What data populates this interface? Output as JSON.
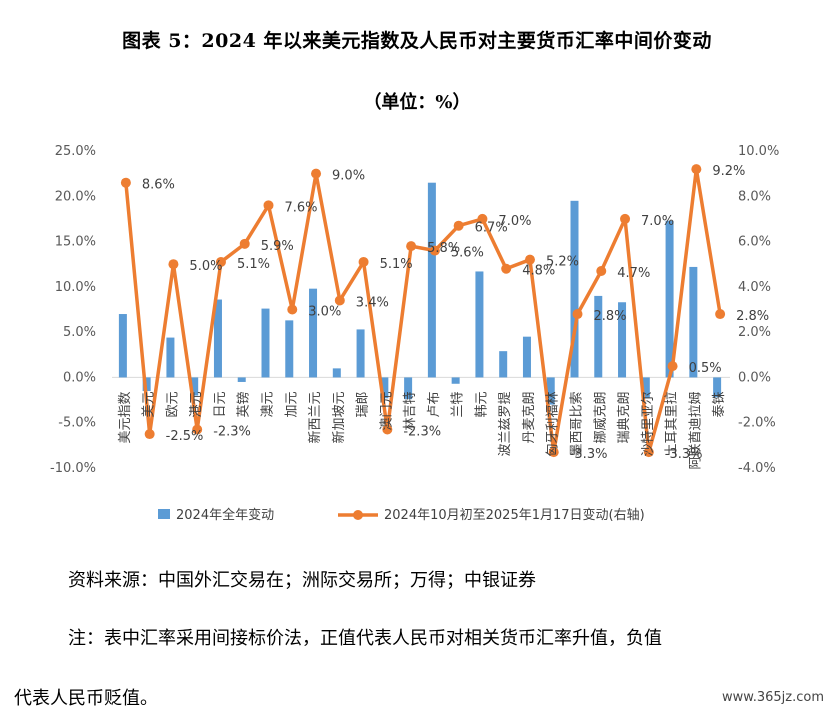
{
  "chart_data": {
    "type": "bar+line",
    "title": "图表 5：2024 年以来美元指数及人民币对主要货币汇率中间价变动",
    "subtitle": "（单位：%）",
    "categories": [
      "美元指数",
      "美元",
      "欧元",
      "港元",
      "日元",
      "英镑",
      "澳元",
      "加元",
      "新西兰元",
      "新加坡元",
      "瑞郎",
      "澳门元",
      "林吉特",
      "卢布",
      "兰特",
      "韩元",
      "波兰兹罗提",
      "丹麦克朗",
      "匈牙利福林",
      "墨西哥比索",
      "挪威克朗",
      "瑞典克朗",
      "沙特里亚尔",
      "土耳其里拉",
      "阿联酋迪拉姆",
      "泰铢"
    ],
    "series": [
      {
        "name": "2024年全年变动",
        "type": "bar",
        "axis": "left",
        "color": "#5b9bd5",
        "values": [
          7.0,
          -1.5,
          4.4,
          -2.0,
          8.6,
          -0.5,
          7.6,
          6.3,
          9.8,
          1.0,
          5.3,
          -2.3,
          -2.4,
          21.5,
          -0.7,
          11.7,
          2.9,
          4.5,
          -3.0,
          19.5,
          9.0,
          8.3,
          -2.3,
          17.3,
          12.2,
          -2.2
        ]
      },
      {
        "name": "2024年10月初至2025年1月17日变动(右轴)",
        "type": "line",
        "axis": "right",
        "color": "#ed7d31",
        "values": [
          8.6,
          -2.5,
          5.0,
          -2.3,
          5.1,
          5.9,
          7.6,
          3.0,
          9.0,
          3.4,
          5.1,
          -2.3,
          5.8,
          5.6,
          6.7,
          7.0,
          4.8,
          5.2,
          -3.3,
          2.8,
          4.7,
          7.0,
          -3.3,
          0.5,
          9.2,
          2.8
        ]
      }
    ],
    "data_labels": [
      "8.6%",
      "-2.5%",
      "5.0%",
      "-2.3%",
      "5.1%",
      "5.9%",
      "7.6%",
      "3.0%",
      "9.0%",
      "3.4%",
      "5.1%",
      "-2.3%",
      "5.8%",
      "5.6%",
      "6.7%",
      "7.0%",
      "4.8%",
      "5.2%",
      "-3.3%",
      "2.8%",
      "4.7%",
      "7.0%",
      "-3.3%",
      "0.5%",
      "9.2%",
      "2.8%"
    ],
    "left_axis": {
      "min": -10,
      "max": 25,
      "step": 5,
      "ticks": [
        "-10.0%",
        "-5.0%",
        "0.0%",
        "5.0%",
        "10.0%",
        "15.0%",
        "20.0%",
        "25.0%"
      ]
    },
    "right_axis": {
      "min": -4,
      "max": 10,
      "step": 2,
      "ticks": [
        "-4.0%",
        "-2.0%",
        "0.0%",
        "2.0%",
        "4.0%",
        "6.0%",
        "8.0%",
        "10.0%"
      ]
    },
    "legend_position": "bottom",
    "grid": false
  },
  "footer": {
    "source": "资料来源：中国外汇交易在；洲际交易所；万得；中银证券",
    "note_line1": "注：表中汇率采用间接标价法，正值代表人民币对相关货币汇率升值，负值",
    "note_line2": "代表人民币贬值。",
    "watermark": "www.365jz.com"
  }
}
